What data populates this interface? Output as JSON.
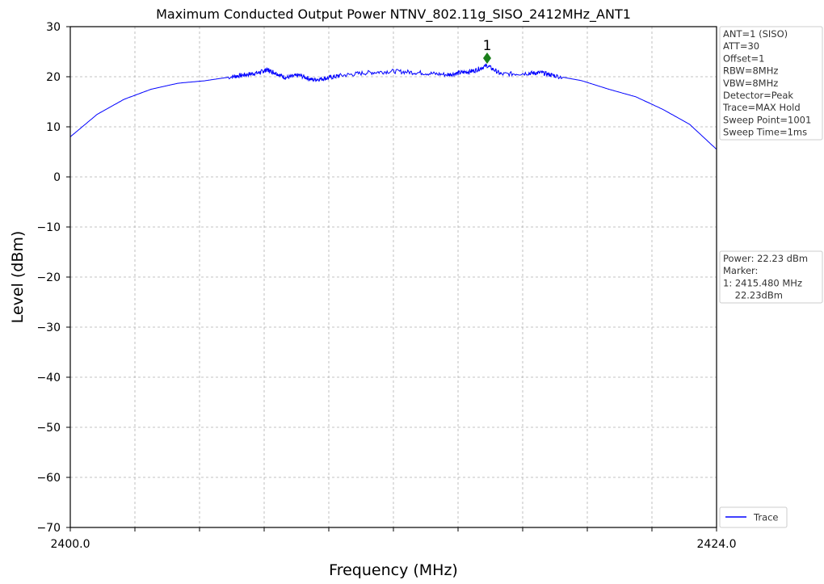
{
  "chart_data": {
    "type": "line",
    "title": "Maximum Conducted Output Power NTNV_802.11g_SISO_2412MHz_ANT1",
    "xlabel": "Frequency (MHz)",
    "ylabel": "Level (dBm)",
    "xlim": [
      2400.0,
      2424.0
    ],
    "ylim": [
      -70,
      30
    ],
    "x_tick_labels": [
      "2400.0",
      "2424.0"
    ],
    "y_ticks": [
      30,
      20,
      10,
      0,
      -10,
      -20,
      -30,
      -40,
      -50,
      -60,
      -70
    ],
    "y_tick_labels": [
      "30",
      "20",
      "10",
      "0",
      "−10",
      "−20",
      "−30",
      "−40",
      "−50",
      "−60",
      "−70"
    ],
    "grid": true,
    "legend_position": "bottom-right outside",
    "series": [
      {
        "name": "Trace",
        "color": "#0000ff",
        "x": [
          2400.0,
          2401.0,
          2402.0,
          2403.0,
          2404.0,
          2405.0,
          2406.0,
          2406.5,
          2407.0,
          2407.3,
          2407.6,
          2408.0,
          2408.5,
          2409.0,
          2409.5,
          2410.0,
          2411.0,
          2412.0,
          2413.0,
          2414.0,
          2414.5,
          2415.0,
          2415.48,
          2416.0,
          2417.0,
          2417.5,
          2418.0,
          2419.0,
          2420.0,
          2421.0,
          2422.0,
          2423.0,
          2424.0
        ],
        "y": [
          8.0,
          12.5,
          15.5,
          17.5,
          18.7,
          19.2,
          20.0,
          20.4,
          20.8,
          21.4,
          20.8,
          19.8,
          20.3,
          19.4,
          19.7,
          20.2,
          20.8,
          21.1,
          20.8,
          20.4,
          20.8,
          21.2,
          22.23,
          20.5,
          20.7,
          20.8,
          20.2,
          19.2,
          17.5,
          16.0,
          13.5,
          10.5,
          5.5
        ]
      }
    ],
    "marker": {
      "label": "1",
      "x": 2415.48,
      "y": 23.7,
      "color": "#1a7f1a"
    }
  },
  "settings_box": {
    "lines": [
      "ANT=1 (SISO)",
      "ATT=30",
      "Offset=1",
      "RBW=8MHz",
      "VBW=8MHz",
      "Detector=Peak",
      "Trace=MAX Hold",
      "Sweep Point=1001",
      "Sweep Time=1ms"
    ]
  },
  "result_box": {
    "lines": [
      "Power: 22.23 dBm",
      "Marker:",
      "1: 2415.480 MHz",
      "    22.23dBm"
    ]
  },
  "legend": {
    "label": "Trace"
  }
}
